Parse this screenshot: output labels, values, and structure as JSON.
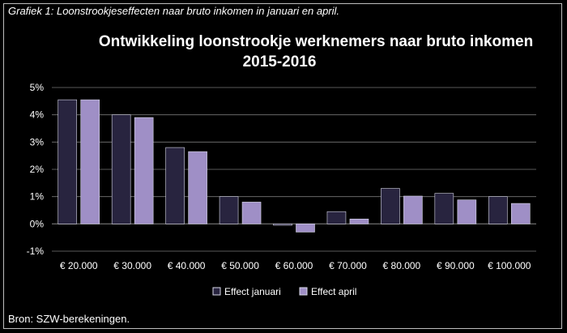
{
  "captions": {
    "top": "Grafiek 1: Loonstrookjeseffecten naar bruto inkomen in januari en april.",
    "bottom": "Bron: SZW-berekeningen."
  },
  "colors": {
    "background": "#000000",
    "series_januari": "#28243f",
    "series_april": "#9f8fc6",
    "grid": "#777777"
  },
  "chart_data": {
    "type": "bar",
    "title_lines": [
      "Ontwikkeling loonstrookje werknemers naar bruto inkomen",
      "2015-2016"
    ],
    "xlabel": "",
    "ylabel": "",
    "categories": [
      "€ 20.000",
      "€ 30.000",
      "€ 40.000",
      "€ 50.000",
      "€ 60.000",
      "€ 70.000",
      "€ 80.000",
      "€ 90.000",
      "€ 100.000"
    ],
    "series": [
      {
        "name": "Effect januari",
        "values": [
          4.55,
          4.0,
          2.8,
          1.0,
          -0.05,
          0.45,
          1.3,
          1.12,
          1.0
        ]
      },
      {
        "name": "Effect april",
        "values": [
          4.55,
          3.9,
          2.65,
          0.8,
          -0.3,
          0.18,
          1.02,
          0.88,
          0.75
        ]
      }
    ],
    "yticks": [
      -1,
      0,
      1,
      2,
      3,
      4,
      5
    ],
    "ytick_labels": [
      "-1%",
      "0%",
      "1%",
      "2%",
      "3%",
      "4%",
      "5%"
    ],
    "ylim": [
      -1,
      5
    ],
    "grid": true,
    "legend_position": "bottom"
  }
}
